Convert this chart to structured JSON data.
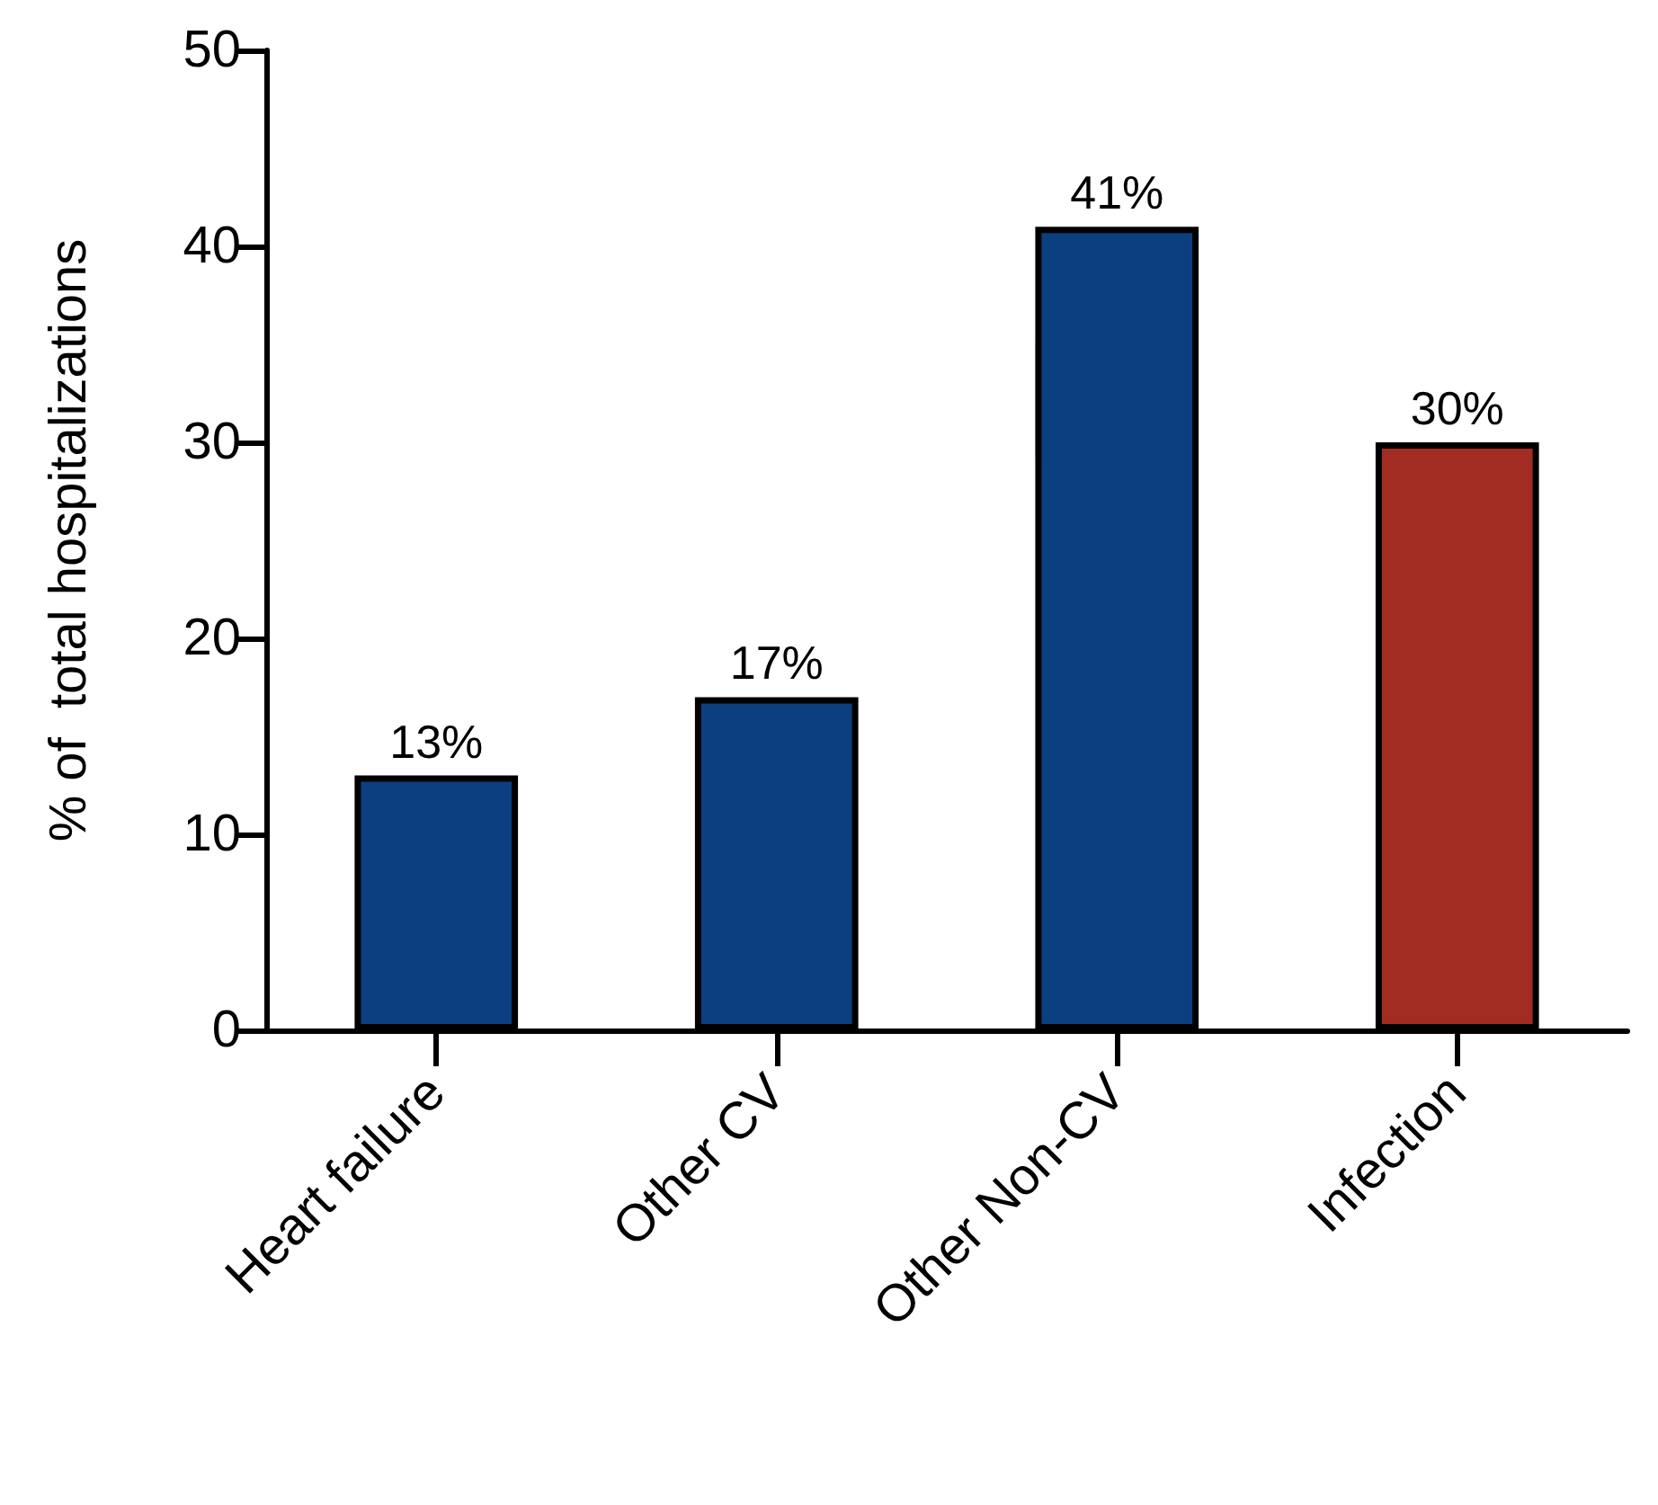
{
  "chart_data": {
    "type": "bar",
    "ylabel": "% of  total hospitalizations",
    "categories": [
      "Heart failure",
      "Other CV",
      "Other Non-CV",
      "Infection"
    ],
    "values": [
      13,
      17,
      41,
      30
    ],
    "colors": [
      "#0b3f80",
      "#0b3f80",
      "#0b3f80",
      "#a22c22"
    ],
    "value_labels": [
      "13%",
      "17%",
      "41%",
      "30%"
    ],
    "ylim": [
      0,
      50
    ],
    "yticks": [
      0,
      10,
      20,
      30,
      40,
      50
    ],
    "grid": false
  }
}
